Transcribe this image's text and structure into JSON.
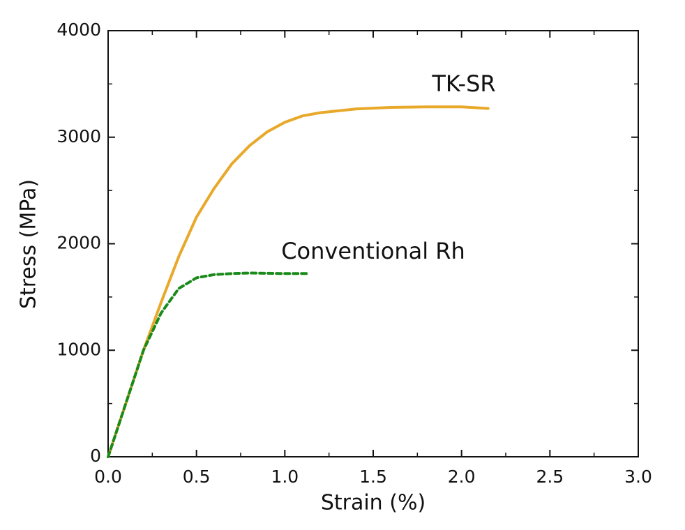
{
  "chart_data": {
    "type": "line",
    "xlabel": "Strain (%)",
    "ylabel": "Stress (MPa)",
    "xlim": [
      0,
      3
    ],
    "xticks": [
      {
        "value": 0,
        "label": "0.0"
      },
      0.5,
      {
        "value": 1,
        "label": "1.0"
      },
      1.5,
      {
        "value": 2,
        "label": "2.0"
      },
      2.5,
      {
        "value": 3,
        "label": "3.0"
      }
    ],
    "xminorticks": [
      0.25,
      0.75,
      1.25,
      1.75,
      2.25,
      2.75
    ],
    "ylim": [
      0,
      4000
    ],
    "yticks": [
      0,
      1000,
      2000,
      3000,
      4000
    ],
    "yminorticks": [
      500,
      1500,
      2500,
      3500
    ],
    "series": [
      {
        "name": "TK-SR",
        "color": "#e8a92a",
        "line_style": "solid",
        "x": [
          0,
          0.1,
          0.2,
          0.3,
          0.4,
          0.5,
          0.6,
          0.7,
          0.8,
          0.9,
          1.0,
          1.1,
          1.2,
          1.4,
          1.6,
          1.8,
          2.0,
          2.15
        ],
        "values": [
          0,
          500,
          1000,
          1450,
          1880,
          2250,
          2520,
          2750,
          2920,
          3050,
          3140,
          3200,
          3230,
          3265,
          3280,
          3285,
          3285,
          3270
        ]
      },
      {
        "name": "Conventional Rh",
        "color": "#1a8a1a",
        "line_style": "dashed",
        "x": [
          0,
          0.1,
          0.2,
          0.3,
          0.4,
          0.5,
          0.6,
          0.7,
          0.8,
          1.0,
          1.14
        ],
        "values": [
          0,
          500,
          1000,
          1350,
          1580,
          1680,
          1710,
          1720,
          1725,
          1720,
          1720
        ]
      }
    ]
  }
}
